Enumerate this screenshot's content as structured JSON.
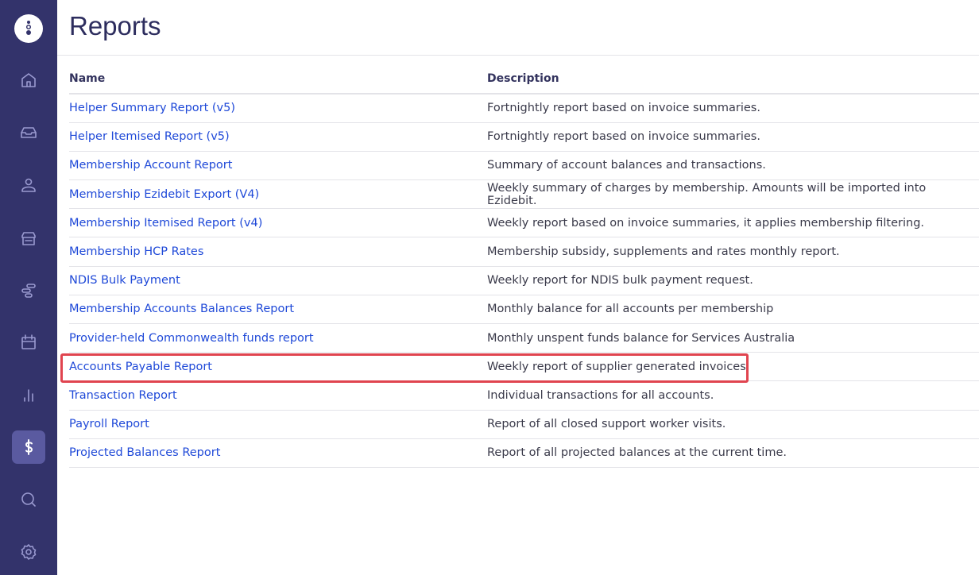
{
  "page": {
    "title": "Reports"
  },
  "sidebar": {
    "items": [
      {
        "icon": "home-icon",
        "label": "home"
      },
      {
        "icon": "inbox-icon",
        "label": "inbox"
      },
      {
        "icon": "user-icon",
        "label": "people"
      },
      {
        "icon": "store-icon",
        "label": "providers"
      },
      {
        "icon": "timeline-icon",
        "label": "planning"
      },
      {
        "icon": "calendar-icon",
        "label": "calendar"
      },
      {
        "icon": "bar-chart-icon",
        "label": "analytics"
      },
      {
        "icon": "dollar-icon",
        "label": "finance",
        "active": true
      },
      {
        "icon": "search-icon",
        "label": "search"
      },
      {
        "icon": "gear-icon",
        "label": "settings"
      }
    ]
  },
  "table": {
    "headers": [
      "Name",
      "Description"
    ],
    "rows": [
      {
        "name": "Helper Summary Report (v5)",
        "description": "Fortnightly report based on invoice summaries."
      },
      {
        "name": "Helper Itemised Report (v5)",
        "description": "Fortnightly report based on invoice summaries."
      },
      {
        "name": "Membership Account Report",
        "description": "Summary of account balances and transactions."
      },
      {
        "name": "Membership Ezidebit Export (V4)",
        "description": "Weekly summary of charges by membership. Amounts will be imported into Ezidebit."
      },
      {
        "name": "Membership Itemised Report (v4)",
        "description": "Weekly report based on invoice summaries, it applies membership filtering."
      },
      {
        "name": "Membership HCP Rates",
        "description": "Membership subsidy, supplements and rates monthly report."
      },
      {
        "name": "NDIS Bulk Payment",
        "description": "Weekly report for NDIS bulk payment request."
      },
      {
        "name": "Membership Accounts Balances Report",
        "description": "Monthly balance for all accounts per membership"
      },
      {
        "name": "Provider-held Commonwealth funds report",
        "description": "Monthly unspent funds balance for Services Australia"
      },
      {
        "name": "Accounts Payable Report",
        "description": "Weekly report of supplier generated invoices",
        "highlighted": true
      },
      {
        "name": "Transaction Report",
        "description": "Individual transactions for all accounts."
      },
      {
        "name": "Payroll Report",
        "description": "Report of all closed support worker visits."
      },
      {
        "name": "Projected Balances Report",
        "description": "Report of all projected balances at the current time."
      }
    ]
  },
  "colors": {
    "sidebar": "#33336b",
    "link": "#1f49d8",
    "highlight": "#e0444f"
  }
}
